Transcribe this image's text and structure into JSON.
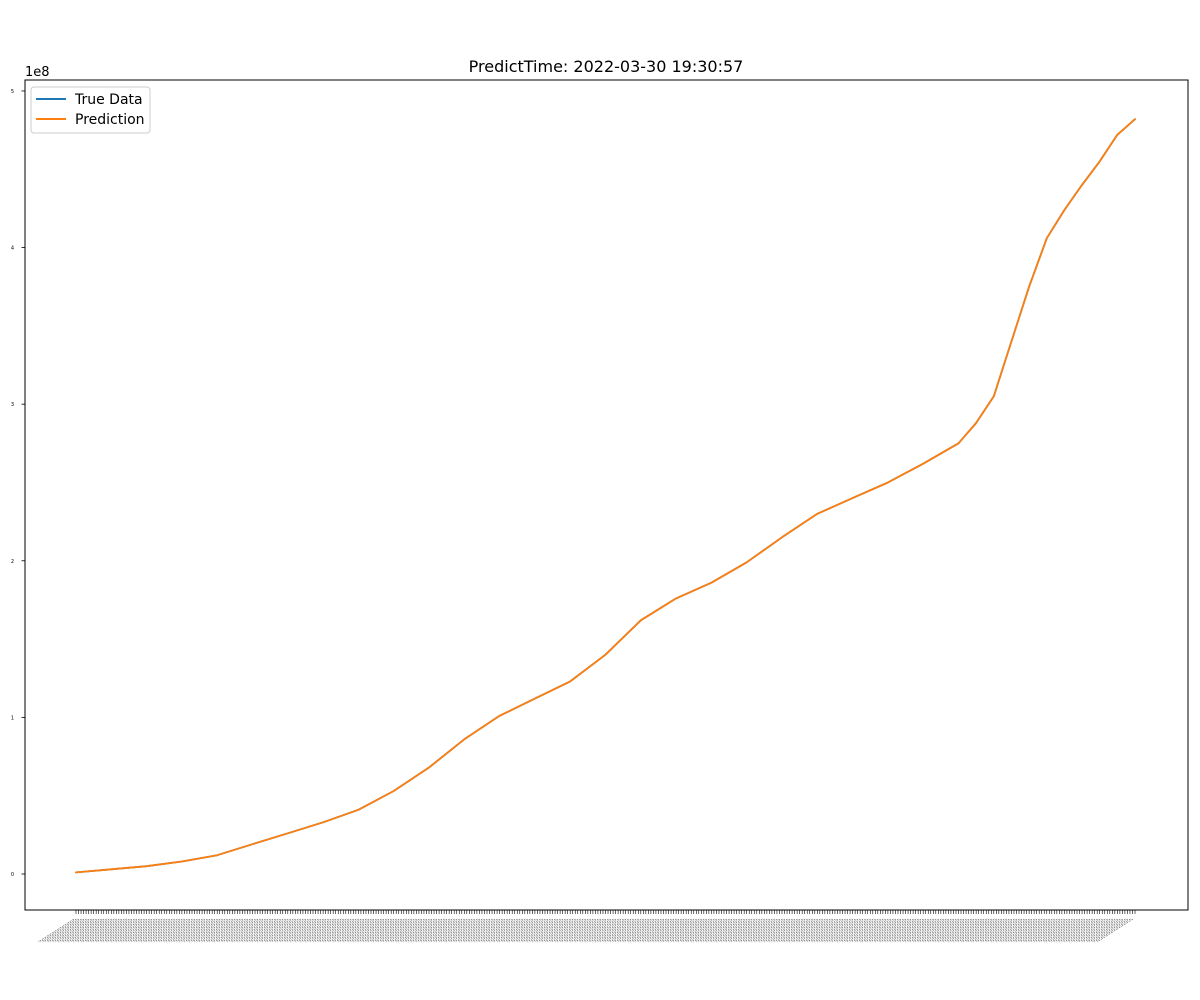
{
  "chart_data": {
    "type": "line",
    "title": "PredictTime: 2022-03-30 19:30:57",
    "xlabel": "",
    "ylabel": "",
    "y_offset_label": "1e8",
    "y_scale": 100000000,
    "ylim": [
      -0.23,
      5.07
    ],
    "y_ticks": [
      0,
      1,
      2,
      3,
      4,
      5
    ],
    "y_tick_labels": [
      "0",
      "1",
      "2",
      "3",
      "4",
      "5"
    ],
    "x_tick_count": 421,
    "x_tick_labels_readable": false,
    "grid": false,
    "legend_position": "upper-left",
    "series": [
      {
        "name": "True Data",
        "color": "#1f77b4",
        "points": [
          [
            0,
            0.01
          ],
          [
            20,
            0.03
          ],
          [
            40,
            0.05
          ],
          [
            60,
            0.08
          ],
          [
            80,
            0.12
          ],
          [
            100,
            0.19
          ],
          [
            120,
            0.26
          ],
          [
            140,
            0.33
          ],
          [
            160,
            0.41
          ],
          [
            180,
            0.53
          ],
          [
            200,
            0.68
          ],
          [
            220,
            0.86
          ],
          [
            240,
            1.01
          ],
          [
            260,
            1.12
          ],
          [
            280,
            1.23
          ],
          [
            300,
            1.4
          ],
          [
            320,
            1.62
          ],
          [
            340,
            1.76
          ],
          [
            360,
            1.86
          ],
          [
            380,
            1.99
          ],
          [
            400,
            2.15
          ],
          [
            420,
            2.3
          ],
          [
            440,
            2.4
          ],
          [
            460,
            2.5
          ],
          [
            480,
            2.62
          ],
          [
            500,
            2.75
          ],
          [
            510,
            2.88
          ],
          [
            520,
            3.05
          ],
          [
            530,
            3.4
          ],
          [
            540,
            3.75
          ],
          [
            550,
            4.06
          ],
          [
            560,
            4.24
          ],
          [
            570,
            4.4
          ],
          [
            580,
            4.55
          ],
          [
            590,
            4.72
          ],
          [
            600,
            4.82
          ]
        ]
      },
      {
        "name": "Prediction",
        "color": "#ff7f0e",
        "points": [
          [
            0,
            0.01
          ],
          [
            20,
            0.03
          ],
          [
            40,
            0.05
          ],
          [
            60,
            0.08
          ],
          [
            80,
            0.12
          ],
          [
            100,
            0.19
          ],
          [
            120,
            0.26
          ],
          [
            140,
            0.33
          ],
          [
            160,
            0.41
          ],
          [
            180,
            0.53
          ],
          [
            200,
            0.68
          ],
          [
            220,
            0.86
          ],
          [
            240,
            1.01
          ],
          [
            260,
            1.12
          ],
          [
            280,
            1.23
          ],
          [
            300,
            1.4
          ],
          [
            320,
            1.62
          ],
          [
            340,
            1.76
          ],
          [
            360,
            1.86
          ],
          [
            380,
            1.99
          ],
          [
            400,
            2.15
          ],
          [
            420,
            2.3
          ],
          [
            440,
            2.4
          ],
          [
            460,
            2.5
          ],
          [
            480,
            2.62
          ],
          [
            500,
            2.75
          ],
          [
            510,
            2.88
          ],
          [
            520,
            3.05
          ],
          [
            530,
            3.4
          ],
          [
            540,
            3.75
          ],
          [
            550,
            4.06
          ],
          [
            560,
            4.24
          ],
          [
            570,
            4.4
          ],
          [
            580,
            4.55
          ],
          [
            590,
            4.72
          ],
          [
            600,
            4.82
          ]
        ]
      }
    ]
  }
}
